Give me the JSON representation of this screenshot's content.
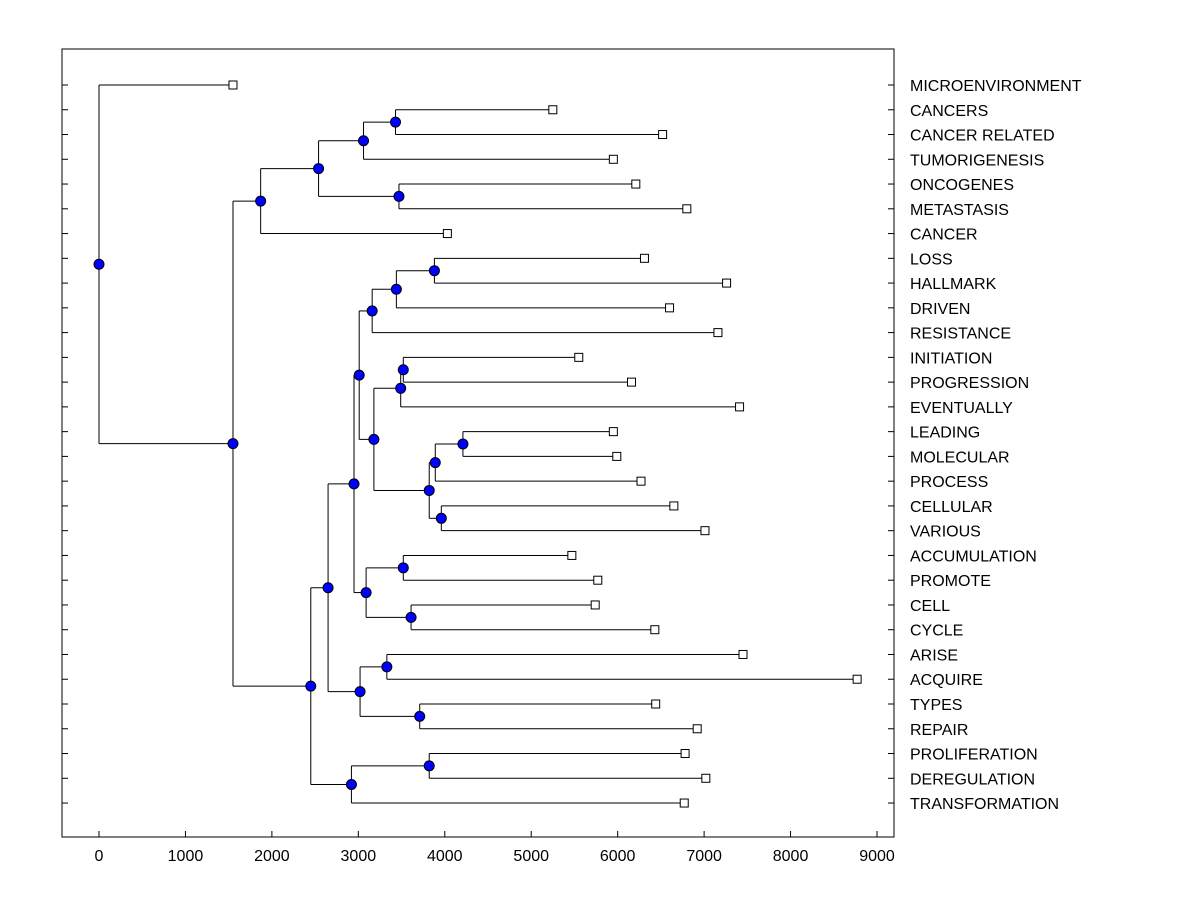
{
  "chart_data": {
    "type": "dendrogram",
    "title": "",
    "xlabel": "",
    "ylabel": "",
    "xlim": [
      -420,
      9200
    ],
    "x_ticks": [
      0,
      1000,
      2000,
      3000,
      4000,
      5000,
      6000,
      7000,
      8000,
      9000
    ],
    "grid": false,
    "colors": {
      "node_fill": "#0000ff",
      "line": "#000000",
      "leaf_fill": "#ffffff"
    },
    "leaves": [
      {
        "label": "MICROENVIRONMENT",
        "value": 1550
      },
      {
        "label": "CANCERS",
        "value": 5250
      },
      {
        "label": "CANCER RELATED",
        "value": 6520
      },
      {
        "label": "TUMORIGENESIS",
        "value": 5950
      },
      {
        "label": "ONCOGENES",
        "value": 6210
      },
      {
        "label": "METASTASIS",
        "value": 6800
      },
      {
        "label": "CANCER",
        "value": 4030
      },
      {
        "label": "LOSS",
        "value": 6310
      },
      {
        "label": "HALLMARK",
        "value": 7260
      },
      {
        "label": "DRIVEN",
        "value": 6600
      },
      {
        "label": "RESISTANCE",
        "value": 7160
      },
      {
        "label": "INITIATION",
        "value": 5550
      },
      {
        "label": "PROGRESSION",
        "value": 6160
      },
      {
        "label": "EVENTUALLY",
        "value": 7410
      },
      {
        "label": "LEADING",
        "value": 5950
      },
      {
        "label": "MOLECULAR",
        "value": 5990
      },
      {
        "label": "PROCESS",
        "value": 6270
      },
      {
        "label": "CELLULAR",
        "value": 6650
      },
      {
        "label": "VARIOUS",
        "value": 7010
      },
      {
        "label": "ACCUMULATION",
        "value": 5470
      },
      {
        "label": "PROMOTE",
        "value": 5770
      },
      {
        "label": "CELL",
        "value": 5740
      },
      {
        "label": "CYCLE",
        "value": 6430
      },
      {
        "label": "ARISE",
        "value": 7450
      },
      {
        "label": "ACQUIRE",
        "value": 8770
      },
      {
        "label": "TYPES",
        "value": 6440
      },
      {
        "label": "REPAIR",
        "value": 6920
      },
      {
        "label": "PROLIFERATION",
        "value": 6780
      },
      {
        "label": "DEREGULATION",
        "value": 7020
      },
      {
        "label": "TRANSFORMATION",
        "value": 6770
      }
    ],
    "nodes": [
      {
        "id": "n_cancers",
        "value": 3430,
        "children": [
          "L1",
          "L2"
        ]
      },
      {
        "id": "n_cancers_tumor",
        "value": 3060,
        "children": [
          "n_cancers",
          "L3"
        ]
      },
      {
        "id": "n_onco",
        "value": 3470,
        "children": [
          "L4",
          "L5"
        ]
      },
      {
        "id": "n_group1",
        "value": 2540,
        "children": [
          "n_cancers_tumor",
          "n_onco"
        ]
      },
      {
        "id": "n_group1_cancer",
        "value": 1870,
        "children": [
          "n_group1",
          "L6"
        ]
      },
      {
        "id": "n_loss",
        "value": 3880,
        "children": [
          "L7",
          "L8"
        ]
      },
      {
        "id": "n_loss_driven",
        "value": 3440,
        "children": [
          "n_loss",
          "L9"
        ]
      },
      {
        "id": "n_loss_resist",
        "value": 3160,
        "children": [
          "n_loss_driven",
          "L10"
        ]
      },
      {
        "id": "n_init",
        "value": 3520,
        "children": [
          "L11",
          "L12"
        ]
      },
      {
        "id": "n_init_event",
        "value": 3490,
        "children": [
          "n_init",
          "L13"
        ]
      },
      {
        "id": "n_leading",
        "value": 4210,
        "children": [
          "L14",
          "L15"
        ]
      },
      {
        "id": "n_leading_process",
        "value": 3890,
        "children": [
          "n_leading",
          "L16"
        ]
      },
      {
        "id": "n_cellular",
        "value": 3960,
        "children": [
          "L17",
          "L18"
        ]
      },
      {
        "id": "n_proc_group",
        "value": 3820,
        "children": [
          "n_leading_process",
          "n_cellular"
        ]
      },
      {
        "id": "n_mid",
        "value": 3180,
        "children": [
          "n_init_event",
          "n_proc_group"
        ]
      },
      {
        "id": "n_upper2",
        "value": 3010,
        "children": [
          "n_loss_resist",
          "n_mid"
        ]
      },
      {
        "id": "n_accum",
        "value": 3520,
        "children": [
          "L19",
          "L20"
        ]
      },
      {
        "id": "n_cell",
        "value": 3610,
        "children": [
          "L21",
          "L22"
        ]
      },
      {
        "id": "n_accum_cell",
        "value": 3090,
        "children": [
          "n_accum",
          "n_cell"
        ]
      },
      {
        "id": "n_big",
        "value": 2950,
        "children": [
          "n_upper2",
          "n_accum_cell"
        ]
      },
      {
        "id": "n_arise",
        "value": 3330,
        "children": [
          "L23",
          "L24"
        ]
      },
      {
        "id": "n_types",
        "value": 3710,
        "children": [
          "L25",
          "L26"
        ]
      },
      {
        "id": "n_arise_types",
        "value": 3020,
        "children": [
          "n_arise",
          "n_types"
        ]
      },
      {
        "id": "n_big2",
        "value": 2650,
        "children": [
          "n_big",
          "n_arise_types"
        ]
      },
      {
        "id": "n_prolif",
        "value": 3820,
        "children": [
          "L27",
          "L28"
        ]
      },
      {
        "id": "n_prolif_trans",
        "value": 2920,
        "children": [
          "n_prolif",
          "L29"
        ]
      },
      {
        "id": "n_lower",
        "value": 2450,
        "children": [
          "n_big2",
          "n_prolif_trans"
        ]
      },
      {
        "id": "n_main",
        "value": 1550,
        "children": [
          "n_group1_cancer",
          "n_lower"
        ]
      },
      {
        "id": "n_root",
        "value": 0,
        "children": [
          "L0",
          "n_main"
        ]
      }
    ]
  }
}
